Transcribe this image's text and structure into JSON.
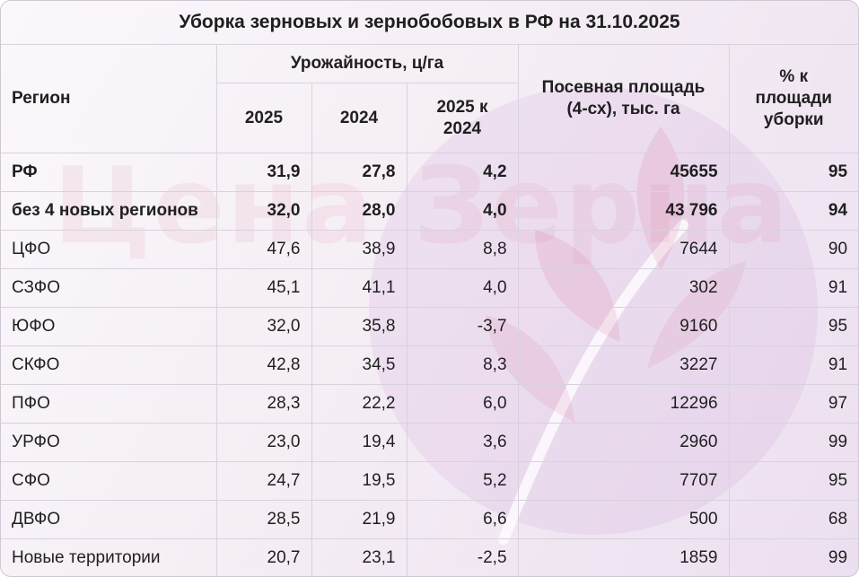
{
  "title": "Уборка зерновых и зернобобовых в РФ на 31.10.2025",
  "watermark": "Цена Зерна",
  "headers": {
    "region": "Регион",
    "yield_group": "Урожайность, ц/га",
    "y2025": "2025",
    "y2024": "2024",
    "change": "2025 к 2024",
    "area": "Посевная площадь (4-сх), тыс. га",
    "harvest_pct": "% к площади уборки"
  },
  "rows": [
    {
      "region": "РФ",
      "y2025": "31,9",
      "y2024": "27,8",
      "change": "4,2",
      "area": "45655",
      "pct": "95",
      "bold": true
    },
    {
      "region": "без 4 новых регионов",
      "y2025": "32,0",
      "y2024": "28,0",
      "change": "4,0",
      "area": "43 796",
      "pct": "94",
      "bold": true
    },
    {
      "region": "ЦФО",
      "y2025": "47,6",
      "y2024": "38,9",
      "change": "8,8",
      "area": "7644",
      "pct": "90",
      "bold": false
    },
    {
      "region": "СЗФО",
      "y2025": "45,1",
      "y2024": "41,1",
      "change": "4,0",
      "area": "302",
      "pct": "91",
      "bold": false
    },
    {
      "region": "ЮФО",
      "y2025": "32,0",
      "y2024": "35,8",
      "change": "-3,7",
      "area": "9160",
      "pct": "95",
      "bold": false
    },
    {
      "region": "СКФО",
      "y2025": "42,8",
      "y2024": "34,5",
      "change": "8,3",
      "area": "3227",
      "pct": "91",
      "bold": false
    },
    {
      "region": "ПФО",
      "y2025": "28,3",
      "y2024": "22,2",
      "change": "6,0",
      "area": "12296",
      "pct": "97",
      "bold": false
    },
    {
      "region": "УРФО",
      "y2025": "23,0",
      "y2024": "19,4",
      "change": "3,6",
      "area": "2960",
      "pct": "99",
      "bold": false
    },
    {
      "region": "СФО",
      "y2025": "24,7",
      "y2024": "19,5",
      "change": "5,2",
      "area": "7707",
      "pct": "95",
      "bold": false
    },
    {
      "region": "ДВФО",
      "y2025": "28,5",
      "y2024": "21,9",
      "change": "6,6",
      "area": "500",
      "pct": "68",
      "bold": false
    },
    {
      "region": "Новые территории",
      "y2025": "20,7",
      "y2024": "23,1",
      "change": "-2,5",
      "area": "1859",
      "pct": "99",
      "bold": false
    }
  ]
}
